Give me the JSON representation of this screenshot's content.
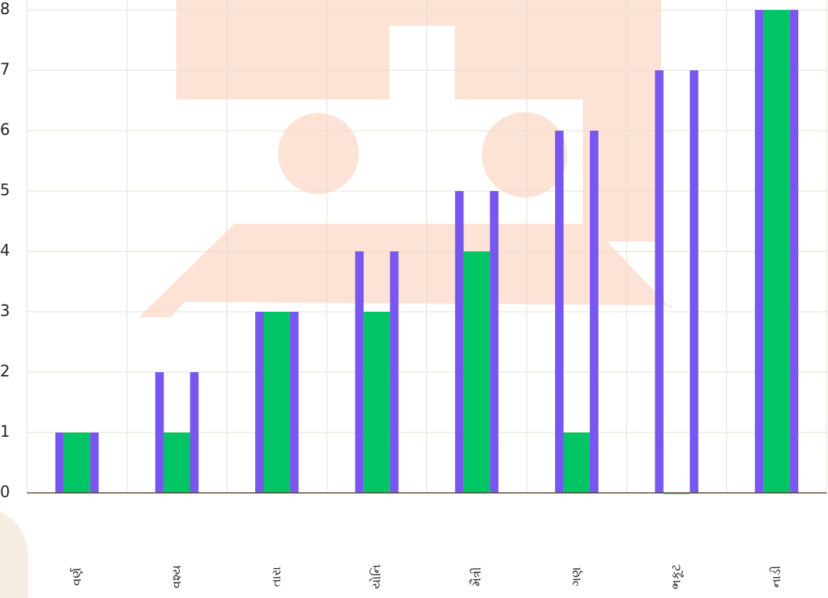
{
  "chart_data": {
    "type": "bar",
    "categories": [
      "વર્ણ",
      "વશ્ય",
      "તારા",
      "યોનિ",
      "મૈત્રી",
      "ગણ",
      "ભકૂટ",
      "નાડી"
    ],
    "series": [
      {
        "color": "#7857ee",
        "values": [
          1,
          2,
          3,
          4,
          5,
          6,
          7,
          8
        ]
      },
      {
        "color": "#00c565",
        "values": [
          1,
          1,
          3,
          3,
          4,
          1,
          0,
          8
        ]
      }
    ],
    "ylim": [
      0,
      8
    ],
    "yticks": [
      0,
      1,
      2,
      3,
      4,
      5,
      6,
      7,
      8
    ],
    "grid": true
  }
}
